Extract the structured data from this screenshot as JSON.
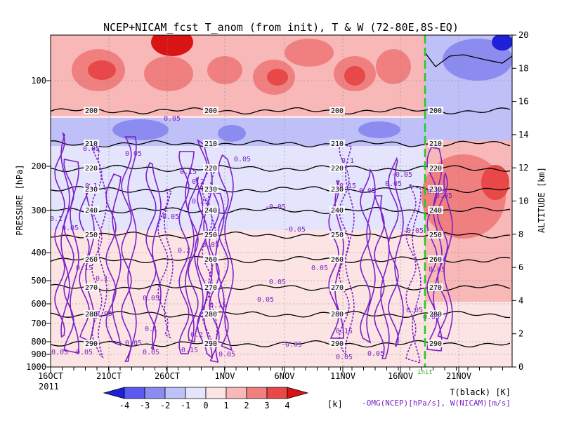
{
  "chart_data": {
    "type": "heatmap",
    "title": "NCEP+NICAM_fcst T_anom (from init), T & W  (72-80E,8S-EQ)",
    "ylabel_left": "PRESSURE [hPa]",
    "ylabel_right": "ALTITUDE [km]",
    "x_ticks": [
      "16OCT",
      "21OCT",
      "26OCT",
      "1NOV",
      "6NOV",
      "11NOV",
      "16NOV",
      "21NOV"
    ],
    "x_year": "2011",
    "init_label": "init",
    "y_ticks_pressure": [
      "100",
      "200",
      "300",
      "400",
      "500",
      "600",
      "700",
      "800",
      "900",
      "1000"
    ],
    "y_ticks_altitude": [
      "0",
      "2",
      "4",
      "6",
      "8",
      "10",
      "12",
      "14",
      "16",
      "18",
      "20"
    ],
    "colorbar": {
      "ticks": [
        "-4",
        "-3",
        "-2",
        "-1",
        "0",
        "1",
        "2",
        "3",
        "4"
      ],
      "unit": "[k]",
      "colors": [
        "#2020d8",
        "#5a5af0",
        "#8c8cf0",
        "#c0c0f8",
        "#e4e4fc",
        "#fce4e4",
        "#f8b8b8",
        "#f08080",
        "#e84848",
        "#d81414"
      ]
    },
    "legend_t": "T(black) [K]",
    "legend_w": "-OMG(NCEP)[hPa/s], W(NICAM)[m/s]",
    "isotherm_labels": [
      "200",
      "210",
      "220",
      "230",
      "240",
      "250",
      "260",
      "270",
      "280",
      "290"
    ],
    "w_labels": [
      "0.05",
      "0.1",
      "0.15",
      "0.2",
      "0.25",
      "-0.05"
    ]
  }
}
